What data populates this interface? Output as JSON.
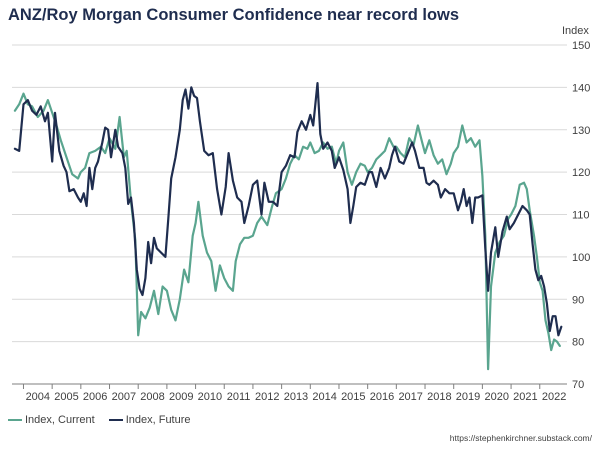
{
  "title": "ANZ/Roy Morgan Consumer Confidence near record lows",
  "source": "https://stephenkirchner.substack.com/",
  "colors": {
    "current": "#5aa58f",
    "future": "#1f2d4f",
    "grid": "#d9d9d9",
    "axis": "#7f7f7f"
  },
  "chart_data": {
    "type": "line",
    "title": "ANZ/Roy Morgan Consumer Confidence near record lows",
    "ylabel": "Index",
    "xlim": [
      2003.6,
      2022.95
    ],
    "ylim": [
      70,
      150
    ],
    "yticks": [
      70,
      80,
      90,
      100,
      110,
      120,
      130,
      140,
      150
    ],
    "xtick_labels": [
      "2004",
      "2005",
      "2006",
      "2007",
      "2008",
      "2009",
      "2010",
      "2011",
      "2012",
      "2013",
      "2014",
      "2015",
      "2016",
      "2017",
      "2018",
      "2019",
      "2020",
      "2021",
      "2022"
    ],
    "grid": true,
    "y_axis_side": "right",
    "legend": "bottom-left",
    "series": [
      {
        "name": "Index, Current",
        "color": "#5aa58f",
        "points": [
          [
            2003.7,
            134.5
          ],
          [
            2003.85,
            136
          ],
          [
            2004.0,
            138.5
          ],
          [
            2004.15,
            136
          ],
          [
            2004.3,
            135.5
          ],
          [
            2004.5,
            133
          ],
          [
            2004.7,
            134.5
          ],
          [
            2004.85,
            137
          ],
          [
            2005.0,
            134
          ],
          [
            2005.15,
            131
          ],
          [
            2005.3,
            127.5
          ],
          [
            2005.5,
            123.5
          ],
          [
            2005.7,
            119.5
          ],
          [
            2005.9,
            118.5
          ],
          [
            2006.0,
            120
          ],
          [
            2006.15,
            121
          ],
          [
            2006.3,
            124.5
          ],
          [
            2006.5,
            125
          ],
          [
            2006.7,
            126
          ],
          [
            2006.85,
            124.5
          ],
          [
            2007.0,
            128
          ],
          [
            2007.2,
            125.5
          ],
          [
            2007.35,
            133
          ],
          [
            2007.5,
            123.5
          ],
          [
            2007.6,
            125
          ],
          [
            2007.75,
            113
          ],
          [
            2007.9,
            104
          ],
          [
            2008.0,
            81.5
          ],
          [
            2008.1,
            87
          ],
          [
            2008.25,
            85.5
          ],
          [
            2008.4,
            88
          ],
          [
            2008.55,
            92
          ],
          [
            2008.7,
            86.5
          ],
          [
            2008.85,
            93
          ],
          [
            2009.0,
            92
          ],
          [
            2009.15,
            87.5
          ],
          [
            2009.3,
            85
          ],
          [
            2009.45,
            90
          ],
          [
            2009.6,
            97
          ],
          [
            2009.75,
            94
          ],
          [
            2009.9,
            105
          ],
          [
            2010.0,
            108
          ],
          [
            2010.1,
            113
          ],
          [
            2010.25,
            105
          ],
          [
            2010.4,
            101
          ],
          [
            2010.55,
            99
          ],
          [
            2010.7,
            92
          ],
          [
            2010.85,
            98
          ],
          [
            2011.0,
            95
          ],
          [
            2011.15,
            93
          ],
          [
            2011.3,
            92
          ],
          [
            2011.4,
            99
          ],
          [
            2011.55,
            103
          ],
          [
            2011.7,
            104.5
          ],
          [
            2011.85,
            104.5
          ],
          [
            2012.0,
            105
          ],
          [
            2012.15,
            108
          ],
          [
            2012.3,
            109.5
          ],
          [
            2012.5,
            107.5
          ],
          [
            2012.65,
            111.5
          ],
          [
            2012.8,
            115
          ],
          [
            2013.0,
            116
          ],
          [
            2013.15,
            118.5
          ],
          [
            2013.3,
            122
          ],
          [
            2013.45,
            124
          ],
          [
            2013.6,
            123
          ],
          [
            2013.75,
            126
          ],
          [
            2013.9,
            125.5
          ],
          [
            2014.0,
            127
          ],
          [
            2014.15,
            124.5
          ],
          [
            2014.3,
            125
          ],
          [
            2014.45,
            127
          ],
          [
            2014.6,
            125.5
          ],
          [
            2014.75,
            126
          ],
          [
            2014.9,
            122
          ],
          [
            2015.0,
            125
          ],
          [
            2015.15,
            127
          ],
          [
            2015.3,
            120
          ],
          [
            2015.45,
            117
          ],
          [
            2015.6,
            120
          ],
          [
            2015.75,
            122
          ],
          [
            2015.9,
            121.5
          ],
          [
            2016.0,
            120
          ],
          [
            2016.15,
            121
          ],
          [
            2016.3,
            123
          ],
          [
            2016.45,
            124
          ],
          [
            2016.6,
            125
          ],
          [
            2016.75,
            128
          ],
          [
            2016.9,
            126
          ],
          [
            2017.0,
            126
          ],
          [
            2017.15,
            124.5
          ],
          [
            2017.3,
            123.5
          ],
          [
            2017.45,
            128
          ],
          [
            2017.6,
            126.5
          ],
          [
            2017.75,
            131
          ],
          [
            2017.9,
            127
          ],
          [
            2018.0,
            124.5
          ],
          [
            2018.15,
            127.5
          ],
          [
            2018.3,
            124
          ],
          [
            2018.45,
            122
          ],
          [
            2018.6,
            123
          ],
          [
            2018.75,
            119.5
          ],
          [
            2018.9,
            122
          ],
          [
            2019.0,
            124.5
          ],
          [
            2019.15,
            126
          ],
          [
            2019.3,
            131
          ],
          [
            2019.45,
            127
          ],
          [
            2019.6,
            128
          ],
          [
            2019.75,
            126
          ],
          [
            2019.9,
            127.5
          ],
          [
            2020.0,
            119
          ],
          [
            2020.1,
            105
          ],
          [
            2020.2,
            73.5
          ],
          [
            2020.3,
            93
          ],
          [
            2020.45,
            101
          ],
          [
            2020.6,
            103.5
          ],
          [
            2020.75,
            105
          ],
          [
            2020.9,
            109
          ],
          [
            2021.0,
            110
          ],
          [
            2021.15,
            112
          ],
          [
            2021.3,
            117
          ],
          [
            2021.45,
            117.5
          ],
          [
            2021.55,
            116
          ],
          [
            2021.65,
            111
          ],
          [
            2021.8,
            105
          ],
          [
            2021.9,
            100
          ],
          [
            2022.0,
            94
          ],
          [
            2022.1,
            92
          ],
          [
            2022.2,
            85
          ],
          [
            2022.3,
            82
          ],
          [
            2022.4,
            78
          ],
          [
            2022.5,
            80.5
          ],
          [
            2022.6,
            80
          ],
          [
            2022.7,
            79
          ]
        ]
      },
      {
        "name": "Index, Future",
        "color": "#1f2d4f",
        "points": [
          [
            2003.7,
            125.5
          ],
          [
            2003.85,
            125
          ],
          [
            2004.0,
            136
          ],
          [
            2004.15,
            137
          ],
          [
            2004.3,
            134.5
          ],
          [
            2004.45,
            133.5
          ],
          [
            2004.6,
            135.5
          ],
          [
            2004.75,
            132
          ],
          [
            2004.85,
            134
          ],
          [
            2005.0,
            122.5
          ],
          [
            2005.1,
            134
          ],
          [
            2005.25,
            125
          ],
          [
            2005.4,
            121.5
          ],
          [
            2005.5,
            120
          ],
          [
            2005.6,
            115.5
          ],
          [
            2005.75,
            116
          ],
          [
            2005.9,
            114
          ],
          [
            2006.0,
            113
          ],
          [
            2006.1,
            115
          ],
          [
            2006.2,
            112
          ],
          [
            2006.3,
            121
          ],
          [
            2006.4,
            116
          ],
          [
            2006.5,
            121
          ],
          [
            2006.6,
            122.5
          ],
          [
            2006.75,
            127
          ],
          [
            2006.85,
            130.5
          ],
          [
            2006.95,
            130
          ],
          [
            2007.05,
            123.5
          ],
          [
            2007.2,
            130
          ],
          [
            2007.3,
            126
          ],
          [
            2007.45,
            124.5
          ],
          [
            2007.55,
            121
          ],
          [
            2007.65,
            112.5
          ],
          [
            2007.75,
            114
          ],
          [
            2007.85,
            108
          ],
          [
            2007.95,
            97
          ],
          [
            2008.05,
            92.5
          ],
          [
            2008.15,
            91
          ],
          [
            2008.25,
            95
          ],
          [
            2008.35,
            103.5
          ],
          [
            2008.45,
            98.5
          ],
          [
            2008.55,
            104.5
          ],
          [
            2008.65,
            102
          ],
          [
            2008.8,
            101
          ],
          [
            2008.95,
            100
          ],
          [
            2009.05,
            109
          ],
          [
            2009.15,
            118.5
          ],
          [
            2009.3,
            123.5
          ],
          [
            2009.45,
            130
          ],
          [
            2009.55,
            137
          ],
          [
            2009.65,
            139.5
          ],
          [
            2009.75,
            135
          ],
          [
            2009.85,
            140
          ],
          [
            2009.95,
            138
          ],
          [
            2010.05,
            137.5
          ],
          [
            2010.15,
            132
          ],
          [
            2010.3,
            125
          ],
          [
            2010.45,
            124
          ],
          [
            2010.6,
            124.5
          ],
          [
            2010.75,
            116
          ],
          [
            2010.9,
            110
          ],
          [
            2011.05,
            116.5
          ],
          [
            2011.15,
            124.5
          ],
          [
            2011.3,
            118
          ],
          [
            2011.45,
            114
          ],
          [
            2011.6,
            113
          ],
          [
            2011.7,
            108
          ],
          [
            2011.85,
            112
          ],
          [
            2012.0,
            117
          ],
          [
            2012.15,
            118
          ],
          [
            2012.3,
            110
          ],
          [
            2012.4,
            117.5
          ],
          [
            2012.55,
            113
          ],
          [
            2012.7,
            113
          ],
          [
            2012.85,
            112
          ],
          [
            2013.0,
            120
          ],
          [
            2013.15,
            121.5
          ],
          [
            2013.3,
            124
          ],
          [
            2013.45,
            123.5
          ],
          [
            2013.55,
            129.5
          ],
          [
            2013.7,
            132
          ],
          [
            2013.85,
            130
          ],
          [
            2014.0,
            133.5
          ],
          [
            2014.1,
            131
          ],
          [
            2014.25,
            141
          ],
          [
            2014.35,
            129
          ],
          [
            2014.45,
            125.5
          ],
          [
            2014.6,
            127
          ],
          [
            2014.75,
            125
          ],
          [
            2014.85,
            121
          ],
          [
            2015.0,
            123.5
          ],
          [
            2015.15,
            120.5
          ],
          [
            2015.3,
            116
          ],
          [
            2015.4,
            108
          ],
          [
            2015.5,
            112
          ],
          [
            2015.6,
            116.5
          ],
          [
            2015.75,
            117.5
          ],
          [
            2015.9,
            117
          ],
          [
            2016.05,
            120
          ],
          [
            2016.15,
            120
          ],
          [
            2016.3,
            116.5
          ],
          [
            2016.45,
            121
          ],
          [
            2016.6,
            118.5
          ],
          [
            2016.75,
            121
          ],
          [
            2016.85,
            124
          ],
          [
            2016.95,
            126
          ],
          [
            2017.1,
            122.5
          ],
          [
            2017.25,
            122
          ],
          [
            2017.4,
            124.5
          ],
          [
            2017.55,
            127
          ],
          [
            2017.65,
            125
          ],
          [
            2017.8,
            121
          ],
          [
            2017.95,
            121
          ],
          [
            2018.05,
            117.5
          ],
          [
            2018.15,
            117
          ],
          [
            2018.3,
            118
          ],
          [
            2018.45,
            117
          ],
          [
            2018.55,
            114
          ],
          [
            2018.7,
            116
          ],
          [
            2018.85,
            115
          ],
          [
            2019.0,
            115
          ],
          [
            2019.15,
            111
          ],
          [
            2019.25,
            113
          ],
          [
            2019.35,
            116
          ],
          [
            2019.45,
            112
          ],
          [
            2019.55,
            114
          ],
          [
            2019.65,
            108
          ],
          [
            2019.75,
            114
          ],
          [
            2019.85,
            114
          ],
          [
            2020.0,
            114.5
          ],
          [
            2020.1,
            102
          ],
          [
            2020.2,
            92
          ],
          [
            2020.3,
            101
          ],
          [
            2020.45,
            107
          ],
          [
            2020.55,
            100
          ],
          [
            2020.7,
            106
          ],
          [
            2020.85,
            109.5
          ],
          [
            2020.95,
            106.5
          ],
          [
            2021.1,
            108
          ],
          [
            2021.25,
            110
          ],
          [
            2021.4,
            112
          ],
          [
            2021.55,
            111
          ],
          [
            2021.65,
            110
          ],
          [
            2021.75,
            103
          ],
          [
            2021.85,
            97
          ],
          [
            2021.95,
            94.5
          ],
          [
            2022.05,
            95.5
          ],
          [
            2022.15,
            93
          ],
          [
            2022.25,
            89
          ],
          [
            2022.35,
            82.5
          ],
          [
            2022.45,
            86
          ],
          [
            2022.55,
            86
          ],
          [
            2022.65,
            81.5
          ],
          [
            2022.75,
            83.5
          ]
        ]
      }
    ]
  }
}
